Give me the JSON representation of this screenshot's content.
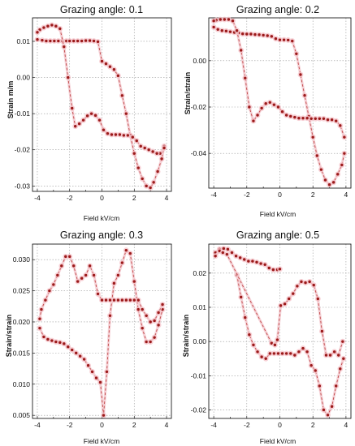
{
  "chart_data": [
    {
      "type": "line",
      "title": "Grazing angle: 0.1",
      "xlabel": "Field kV/cm",
      "ylabel": "Strain m/m",
      "xlim": [
        -4.3,
        4.3
      ],
      "ylim": [
        -0.0315,
        0.0165
      ],
      "xticks": [
        -4,
        -2,
        0,
        2,
        4
      ],
      "yticks": [
        0.01,
        0.0,
        -0.01,
        -0.02,
        -0.03
      ],
      "ytick_labels": [
        "0.01",
        "0.00",
        "-0.01",
        "-0.02",
        "-0.03"
      ],
      "grid": true,
      "series": [
        {
          "x": [
            -4.0,
            -3.7,
            -3.45,
            -3.2,
            -2.95,
            -2.7,
            -2.45,
            -2.2,
            -2.0,
            -1.75,
            -1.5,
            -1.25,
            -1.0,
            -0.75,
            -0.5,
            -0.25,
            0.0,
            0.25,
            0.5,
            0.75,
            1.0,
            1.25,
            1.5,
            1.75,
            2.0,
            2.25,
            2.5,
            2.75,
            3.0,
            3.2,
            3.45,
            3.7,
            3.85
          ],
          "y": [
            0.0105,
            0.0103,
            0.0101,
            0.0101,
            0.0101,
            0.0101,
            0.0101,
            0.0101,
            0.0101,
            0.0101,
            0.0101,
            0.0101,
            0.0102,
            0.0102,
            0.0101,
            0.0099,
            0.0045,
            0.0038,
            0.003,
            0.0022,
            0.0005,
            -0.005,
            -0.01,
            -0.016,
            -0.021,
            -0.025,
            -0.028,
            -0.03,
            -0.0305,
            -0.029,
            -0.026,
            -0.0225,
            -0.019
          ]
        },
        {
          "x": [
            3.85,
            3.6,
            3.4,
            3.15,
            2.9,
            2.65,
            2.4,
            2.15,
            1.9,
            1.6,
            1.35,
            1.1,
            0.85,
            0.6,
            0.35,
            0.1,
            -0.15,
            -0.4,
            -0.65,
            -0.9,
            -1.15,
            -1.4,
            -1.65,
            -1.85,
            -2.1,
            -2.35,
            -2.6,
            -2.85,
            -3.1,
            -3.35,
            -3.6,
            -3.85,
            -4.0
          ],
          "y": [
            -0.0195,
            -0.021,
            -0.021,
            -0.0205,
            -0.02,
            -0.0195,
            -0.019,
            -0.0175,
            -0.0165,
            -0.016,
            -0.016,
            -0.0158,
            -0.0158,
            -0.0158,
            -0.0155,
            -0.0145,
            -0.0118,
            -0.0105,
            -0.01,
            -0.0106,
            -0.0118,
            -0.0128,
            -0.0135,
            -0.0085,
            0.0,
            0.0085,
            0.0135,
            0.0142,
            0.0145,
            0.0142,
            0.0138,
            0.0132,
            0.0125
          ]
        }
      ]
    },
    {
      "type": "line",
      "title": "Grazing angle: 0.2",
      "xlabel": "Field kV/cm",
      "ylabel": "Strain/strain",
      "xlim": [
        -4.3,
        4.3
      ],
      "ylim": [
        -0.055,
        0.0185
      ],
      "xticks": [
        -4,
        -2,
        0,
        2,
        4
      ],
      "yticks": [
        0.0,
        -0.02,
        -0.04
      ],
      "ytick_labels": [
        "0.00",
        "-0.02",
        "-0.04"
      ],
      "grid": true,
      "series": [
        {
          "x": [
            -4.0,
            -3.75,
            -3.5,
            -3.25,
            -3.0,
            -2.75,
            -2.5,
            -2.25,
            -2.0,
            -1.75,
            -1.5,
            -1.25,
            -1.0,
            -0.75,
            -0.5,
            -0.25,
            0.0,
            0.25,
            0.5,
            0.75,
            1.0,
            1.25,
            1.5,
            1.75,
            2.0,
            2.25,
            2.5,
            2.75,
            3.0,
            3.25,
            3.5,
            3.75,
            3.9
          ],
          "y": [
            0.0145,
            0.0135,
            0.013,
            0.0128,
            0.0125,
            0.0122,
            0.012,
            0.0116,
            0.0115,
            0.0115,
            0.0113,
            0.0112,
            0.011,
            0.0108,
            0.0105,
            0.0095,
            0.009,
            0.009,
            0.0089,
            0.0085,
            0.003,
            -0.006,
            -0.015,
            -0.024,
            -0.033,
            -0.041,
            -0.047,
            -0.0515,
            -0.0535,
            -0.0525,
            -0.049,
            -0.045,
            -0.04
          ]
        },
        {
          "x": [
            3.9,
            3.65,
            3.4,
            3.15,
            2.9,
            2.65,
            2.4,
            2.15,
            1.9,
            1.65,
            1.4,
            1.15,
            0.9,
            0.65,
            0.4,
            0.15,
            -0.1,
            -0.35,
            -0.6,
            -0.85,
            -1.1,
            -1.35,
            -1.6,
            -1.85,
            -2.1,
            -2.35,
            -2.6,
            -2.85,
            -3.1,
            -3.35,
            -3.6,
            -3.85,
            -4.0
          ],
          "y": [
            -0.033,
            -0.028,
            -0.026,
            -0.0255,
            -0.0255,
            -0.025,
            -0.025,
            -0.025,
            -0.025,
            -0.0248,
            -0.0248,
            -0.0248,
            -0.0244,
            -0.024,
            -0.0235,
            -0.022,
            -0.02,
            -0.019,
            -0.018,
            -0.0185,
            -0.0205,
            -0.0235,
            -0.026,
            -0.02,
            -0.0075,
            0.0045,
            0.013,
            0.0172,
            0.0178,
            0.0178,
            0.0178,
            0.0175,
            0.0172
          ]
        }
      ]
    },
    {
      "type": "line",
      "title": "Grazing angle: 0.3",
      "xlabel": "Field kV/cm",
      "ylabel": "Strain/strain",
      "xlim": [
        -4.3,
        4.3
      ],
      "ylim": [
        0.0045,
        0.0325
      ],
      "xticks": [
        -4,
        -2,
        0,
        2,
        4
      ],
      "yticks": [
        0.03,
        0.025,
        0.02,
        0.015,
        0.01,
        0.005
      ],
      "ytick_labels": [
        "0.030",
        "0.025",
        "0.020",
        "0.015",
        "0.010",
        "0.005"
      ],
      "grid": true,
      "series": [
        {
          "x": [
            -3.85,
            -3.6,
            -3.35,
            -3.1,
            -2.85,
            -2.6,
            -2.35,
            -2.1,
            -1.85,
            -1.6,
            -1.35,
            -1.1,
            -0.85,
            -0.6,
            -0.35,
            -0.1,
            0.1,
            0.3,
            0.5,
            0.75,
            1.0,
            1.25,
            1.5,
            1.75,
            2.0,
            2.25,
            2.5,
            2.75,
            3.0,
            3.25,
            3.5,
            3.75
          ],
          "y": [
            0.019,
            0.0176,
            0.0172,
            0.017,
            0.0168,
            0.0167,
            0.0165,
            0.016,
            0.0155,
            0.015,
            0.0145,
            0.014,
            0.013,
            0.012,
            0.011,
            0.0103,
            0.005,
            0.012,
            0.021,
            0.0262,
            0.0275,
            0.0295,
            0.0315,
            0.031,
            0.0265,
            0.022,
            0.019,
            0.0168,
            0.0168,
            0.0175,
            0.0195,
            0.022
          ]
        },
        {
          "x": [
            3.75,
            3.5,
            3.25,
            3.0,
            2.75,
            2.5,
            2.25,
            2.0,
            1.75,
            1.5,
            1.25,
            1.0,
            0.75,
            0.5,
            0.25,
            0.0,
            -0.25,
            -0.5,
            -0.75,
            -1.0,
            -1.25,
            -1.5,
            -1.75,
            -2.0,
            -2.25,
            -2.5,
            -2.75,
            -3.0,
            -3.25,
            -3.5,
            -3.75,
            -3.85
          ],
          "y": [
            0.0228,
            0.0215,
            0.0202,
            0.02,
            0.021,
            0.022,
            0.0235,
            0.0235,
            0.0235,
            0.0235,
            0.0235,
            0.0235,
            0.0235,
            0.0235,
            0.0235,
            0.0235,
            0.0245,
            0.0275,
            0.029,
            0.0275,
            0.027,
            0.0265,
            0.029,
            0.0305,
            0.0305,
            0.029,
            0.0275,
            0.026,
            0.025,
            0.0235,
            0.022,
            0.0205
          ]
        }
      ]
    },
    {
      "type": "line",
      "title": "Grazing angle: 0.5",
      "xlabel": "Field kV/cm",
      "ylabel": "Strain/strain",
      "xlim": [
        -4.3,
        4.3
      ],
      "ylim": [
        -0.0225,
        0.0285
      ],
      "xticks": [
        -4,
        -2,
        0,
        2,
        4
      ],
      "yticks": [
        0.02,
        0.01,
        0.0,
        -0.01,
        -0.02
      ],
      "ytick_labels": [
        "0.02",
        "0.01",
        "0.00",
        "-0.01",
        "-0.02"
      ],
      "grid": true,
      "series": [
        {
          "x": [
            -3.9,
            -3.65,
            -3.4,
            -3.15,
            -2.9,
            -2.65,
            -2.4,
            -2.15,
            -1.9,
            -1.65,
            -1.4,
            -1.15,
            -0.9,
            -0.65,
            -0.4,
            -0.15,
            0.0
          ],
          "y": [
            0.026,
            0.027,
            0.0272,
            0.027,
            0.026,
            0.025,
            0.0245,
            0.024,
            0.0235,
            0.0235,
            0.0232,
            0.0228,
            0.0225,
            0.0215,
            0.021,
            0.021,
            0.0212
          ]
        },
        {
          "x": [
            -2.6,
            -2.35,
            -2.1,
            -1.85,
            -1.6,
            -1.35,
            -1.1,
            -0.85,
            -0.6,
            -0.35,
            -0.1,
            0.15,
            0.4,
            0.65,
            0.9,
            1.15,
            1.4,
            1.65,
            1.9,
            2.15,
            2.4,
            2.65,
            2.9,
            3.15,
            3.4,
            3.65,
            3.85
          ],
          "y": [
            0.0195,
            0.013,
            0.007,
            0.002,
            -0.001,
            -0.003,
            -0.0045,
            -0.005,
            -0.0035,
            -0.0035,
            -0.0035,
            -0.0035,
            -0.0035,
            -0.0035,
            -0.004,
            -0.003,
            -0.002,
            -0.003,
            -0.007,
            -0.0085,
            -0.013,
            -0.02,
            -0.0215,
            -0.019,
            -0.013,
            -0.008,
            -0.005
          ]
        },
        {
          "x": [
            -3.9,
            -3.65,
            -3.45,
            -3.2,
            -0.5,
            -0.3,
            -0.15,
            0.05,
            0.3,
            0.55,
            0.8,
            1.05,
            1.3,
            1.55,
            1.8,
            2.05,
            2.3,
            2.55,
            2.8,
            3.05,
            3.3,
            3.55,
            3.8
          ],
          "y": [
            0.025,
            0.0265,
            0.026,
            0.0255,
            -0.0005,
            -0.001,
            0.0005,
            0.0105,
            0.011,
            0.0125,
            0.014,
            0.0162,
            0.0175,
            0.0172,
            0.0175,
            0.0165,
            0.0125,
            0.003,
            -0.004,
            -0.004,
            -0.003,
            -0.004,
            0.0
          ]
        }
      ]
    }
  ]
}
